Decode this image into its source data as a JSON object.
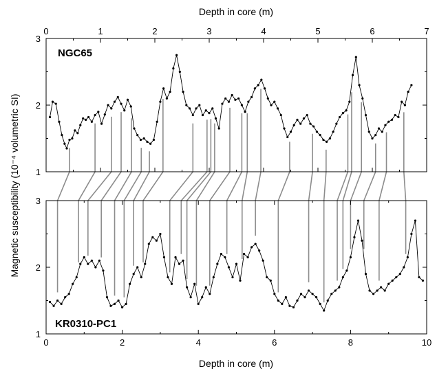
{
  "chart_data": {
    "type": "line",
    "ylabel": "Magnetic susceptibility (10⁻⁴ volumetric SI)",
    "top_panel": {
      "label": "NGC65",
      "xlabel": "Depth in core (m)",
      "xlim": [
        0,
        7
      ],
      "xticks": [
        0,
        1,
        2,
        3,
        4,
        5,
        6,
        7
      ],
      "ylim": [
        1,
        3
      ],
      "yticks": [
        1,
        2,
        3
      ],
      "series": {
        "x": [
          0.07,
          0.12,
          0.18,
          0.24,
          0.29,
          0.34,
          0.38,
          0.43,
          0.48,
          0.53,
          0.58,
          0.63,
          0.68,
          0.73,
          0.78,
          0.84,
          0.9,
          0.96,
          1.02,
          1.08,
          1.14,
          1.2,
          1.26,
          1.32,
          1.38,
          1.44,
          1.5,
          1.56,
          1.62,
          1.68,
          1.74,
          1.8,
          1.86,
          1.92,
          1.98,
          2.04,
          2.1,
          2.16,
          2.22,
          2.28,
          2.34,
          2.4,
          2.46,
          2.52,
          2.58,
          2.64,
          2.7,
          2.76,
          2.82,
          2.88,
          2.94,
          3.0,
          3.06,
          3.12,
          3.18,
          3.24,
          3.3,
          3.36,
          3.42,
          3.48,
          3.54,
          3.6,
          3.66,
          3.72,
          3.78,
          3.84,
          3.9,
          3.96,
          4.02,
          4.08,
          4.14,
          4.2,
          4.26,
          4.32,
          4.38,
          4.44,
          4.5,
          4.56,
          4.62,
          4.68,
          4.74,
          4.8,
          4.86,
          4.92,
          4.98,
          5.04,
          5.1,
          5.16,
          5.22,
          5.28,
          5.34,
          5.4,
          5.46,
          5.52,
          5.58,
          5.64,
          5.7,
          5.76,
          5.82,
          5.88,
          5.94,
          6.0,
          6.06,
          6.12,
          6.18,
          6.24,
          6.3,
          6.36,
          6.42,
          6.48,
          6.54,
          6.6,
          6.66,
          6.72
        ],
        "y": [
          1.82,
          2.05,
          2.02,
          1.75,
          1.55,
          1.42,
          1.35,
          1.48,
          1.5,
          1.62,
          1.58,
          1.7,
          1.8,
          1.78,
          1.82,
          1.75,
          1.85,
          1.9,
          1.72,
          1.86,
          2.0,
          1.95,
          2.05,
          2.12,
          2.02,
          1.92,
          2.08,
          1.98,
          1.65,
          1.55,
          1.48,
          1.5,
          1.45,
          1.42,
          1.48,
          1.75,
          2.05,
          2.25,
          2.1,
          2.2,
          2.55,
          2.75,
          2.5,
          2.2,
          2.0,
          1.95,
          1.85,
          1.95,
          2.0,
          1.85,
          1.92,
          1.88,
          1.95,
          1.8,
          1.65,
          2.02,
          2.1,
          2.05,
          2.15,
          2.08,
          2.1,
          2.0,
          1.9,
          2.05,
          2.12,
          2.25,
          2.3,
          2.38,
          2.25,
          2.1,
          2.0,
          2.05,
          1.95,
          1.85,
          1.65,
          1.52,
          1.6,
          1.7,
          1.78,
          1.72,
          1.8,
          1.85,
          1.72,
          1.68,
          1.6,
          1.55,
          1.48,
          1.45,
          1.5,
          1.6,
          1.72,
          1.82,
          1.88,
          1.92,
          2.05,
          2.45,
          2.72,
          2.3,
          2.1,
          1.85,
          1.6,
          1.5,
          1.55,
          1.65,
          1.6,
          1.7,
          1.75,
          1.78,
          1.85,
          1.82,
          2.05,
          2.0,
          2.2,
          2.3
        ]
      }
    },
    "bottom_panel": {
      "label": "KR0310-PC1",
      "xlabel": "Depth in core (m)",
      "xlim": [
        0,
        10
      ],
      "xticks": [
        0,
        2,
        4,
        6,
        8,
        10
      ],
      "ylim": [
        1,
        3
      ],
      "yticks": [
        1,
        2,
        3
      ],
      "series": {
        "x": [
          0.1,
          0.2,
          0.3,
          0.4,
          0.5,
          0.6,
          0.7,
          0.8,
          0.9,
          1.0,
          1.1,
          1.2,
          1.3,
          1.4,
          1.5,
          1.6,
          1.7,
          1.8,
          1.9,
          2.0,
          2.1,
          2.2,
          2.3,
          2.4,
          2.5,
          2.6,
          2.7,
          2.8,
          2.9,
          3.0,
          3.1,
          3.2,
          3.3,
          3.4,
          3.5,
          3.6,
          3.7,
          3.8,
          3.9,
          4.0,
          4.1,
          4.2,
          4.3,
          4.4,
          4.5,
          4.6,
          4.7,
          4.8,
          4.9,
          5.0,
          5.1,
          5.2,
          5.3,
          5.4,
          5.5,
          5.6,
          5.7,
          5.8,
          5.9,
          6.0,
          6.1,
          6.2,
          6.3,
          6.4,
          6.5,
          6.6,
          6.7,
          6.8,
          6.9,
          7.0,
          7.1,
          7.2,
          7.3,
          7.4,
          7.5,
          7.6,
          7.7,
          7.8,
          7.9,
          8.0,
          8.1,
          8.2,
          8.3,
          8.4,
          8.5,
          8.6,
          8.7,
          8.8,
          8.9,
          9.0,
          9.1,
          9.2,
          9.3,
          9.4,
          9.5,
          9.6,
          9.7,
          9.8,
          9.9
        ],
        "y": [
          1.48,
          1.42,
          1.5,
          1.45,
          1.55,
          1.6,
          1.75,
          1.85,
          2.05,
          2.15,
          2.05,
          2.1,
          2.0,
          2.1,
          1.95,
          1.55,
          1.42,
          1.45,
          1.5,
          1.4,
          1.45,
          1.75,
          1.9,
          2.0,
          1.85,
          2.05,
          2.35,
          2.45,
          2.4,
          2.5,
          2.15,
          1.85,
          1.75,
          2.15,
          2.05,
          2.1,
          1.7,
          1.55,
          1.75,
          1.45,
          1.55,
          1.7,
          1.6,
          1.85,
          2.05,
          2.2,
          2.15,
          2.0,
          1.85,
          2.05,
          1.8,
          2.2,
          2.15,
          2.3,
          2.35,
          2.25,
          2.1,
          1.85,
          1.8,
          1.6,
          1.5,
          1.45,
          1.55,
          1.42,
          1.4,
          1.5,
          1.6,
          1.55,
          1.65,
          1.6,
          1.55,
          1.45,
          1.35,
          1.5,
          1.6,
          1.65,
          1.7,
          1.85,
          1.95,
          2.15,
          2.45,
          2.7,
          2.4,
          1.9,
          1.65,
          1.6,
          1.65,
          1.7,
          1.65,
          1.75,
          1.8,
          1.85,
          1.9,
          2.0,
          2.15,
          2.5,
          2.7,
          1.85,
          1.8
        ]
      }
    },
    "tie_lines": {
      "top_x": [
        0.43,
        0.9,
        1.2,
        1.38,
        1.57,
        1.75,
        1.9,
        2.15,
        2.7,
        2.96,
        3.03,
        3.1,
        3.38,
        3.6,
        3.7,
        3.95,
        4.48,
        4.9,
        5.15,
        5.55,
        5.62,
        5.8,
        6.06,
        6.26,
        6.58
      ],
      "bottom_x": [
        0.3,
        0.85,
        1.1,
        1.45,
        1.8,
        2.05,
        2.3,
        2.55,
        3.25,
        3.55,
        3.7,
        3.95,
        4.3,
        4.75,
        5.15,
        5.5,
        6.1,
        6.9,
        7.3,
        7.65,
        7.8,
        8.0,
        8.35,
        8.75,
        9.45
      ]
    }
  }
}
